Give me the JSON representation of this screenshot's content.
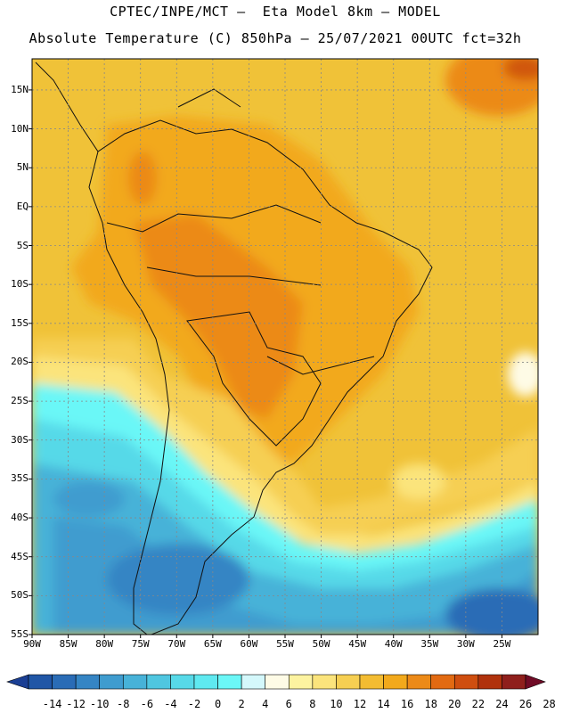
{
  "title": {
    "line1": "CPTEC/INPE/MCT –  Eta Model 8km – MODEL",
    "line2": "Absolute Temperature (C) 850hPa – 25/07/2021 00UTC fct=32h"
  },
  "map": {
    "lat_labels": [
      "15N",
      "10N",
      "5N",
      "EQ",
      "5S",
      "10S",
      "15S",
      "20S",
      "25S",
      "30S",
      "35S",
      "40S",
      "45S",
      "50S",
      "55S"
    ],
    "lat_values": [
      15,
      10,
      5,
      0,
      -5,
      -10,
      -15,
      -20,
      -25,
      -30,
      -35,
      -40,
      -45,
      -50,
      -55
    ],
    "lon_labels": [
      "90W",
      "85W",
      "80W",
      "75W",
      "70W",
      "65W",
      "60W",
      "55W",
      "50W",
      "45W",
      "40W",
      "35W",
      "30W",
      "25W"
    ],
    "lon_values": [
      -90,
      -85,
      -80,
      -75,
      -70,
      -65,
      -60,
      -55,
      -50,
      -45,
      -40,
      -35,
      -30,
      -25
    ],
    "extent": {
      "lon_min": -90,
      "lon_max": -20,
      "lat_min": -55,
      "lat_max": 19
    }
  },
  "colorbar": {
    "labels": [
      "-14",
      "-12",
      "-10",
      "-8",
      "-6",
      "-4",
      "-2",
      "0",
      "2",
      "4",
      "6",
      "8",
      "10",
      "12",
      "14",
      "16",
      "18",
      "20",
      "22",
      "24",
      "26",
      "28"
    ],
    "colors": [
      "#1b3f94",
      "#2056a6",
      "#2a6cb6",
      "#3585c4",
      "#3f9ccf",
      "#47b2d8",
      "#4fc6e0",
      "#57d9e8",
      "#5fe9f0",
      "#6bf7f7",
      "#d4f8fb",
      "#fefbe6",
      "#fdf3a0",
      "#fbe47c",
      "#f6cf52",
      "#f3bc32",
      "#f2a91b",
      "#ec8a18",
      "#e26a12",
      "#cf4e0f",
      "#b0320c",
      "#8f1f1c",
      "#700b26"
    ]
  }
}
